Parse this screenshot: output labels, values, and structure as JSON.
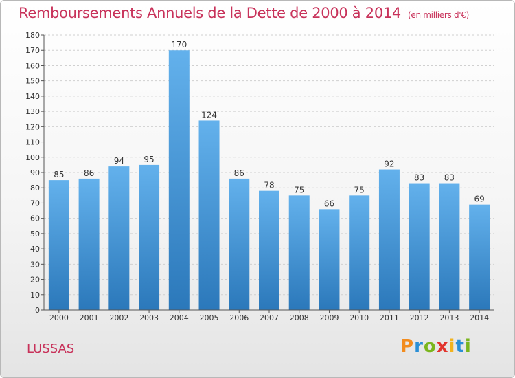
{
  "title": "Remboursements Annuels de la Dette de 2000 à 2014",
  "subtitle": "(en milliers d'€)",
  "commune": "LUSSAS",
  "logo": {
    "letters": [
      "P",
      "r",
      "o",
      "x",
      "i",
      "t",
      "i"
    ],
    "colors": [
      "#f28c1e",
      "#2a8fd6",
      "#7ab51d",
      "#e2342d",
      "#f2b31e",
      "#2a8fd6",
      "#7ab51d"
    ]
  },
  "colors": {
    "bar_light": "#63b1ec",
    "bar_dark": "#2b78ba",
    "title": "#c8325a"
  },
  "chart_data": {
    "type": "bar",
    "categories": [
      "2000",
      "2001",
      "2002",
      "2003",
      "2004",
      "2005",
      "2006",
      "2007",
      "2008",
      "2009",
      "2010",
      "2011",
      "2012",
      "2013",
      "2014"
    ],
    "values": [
      85,
      86,
      94,
      95,
      170,
      124,
      86,
      78,
      75,
      66,
      75,
      92,
      83,
      83,
      69
    ],
    "y_ticks": [
      0,
      10,
      20,
      30,
      40,
      50,
      60,
      70,
      80,
      90,
      100,
      110,
      120,
      130,
      140,
      150,
      160,
      170,
      180
    ],
    "ylim": [
      0,
      180
    ],
    "grid": true
  }
}
